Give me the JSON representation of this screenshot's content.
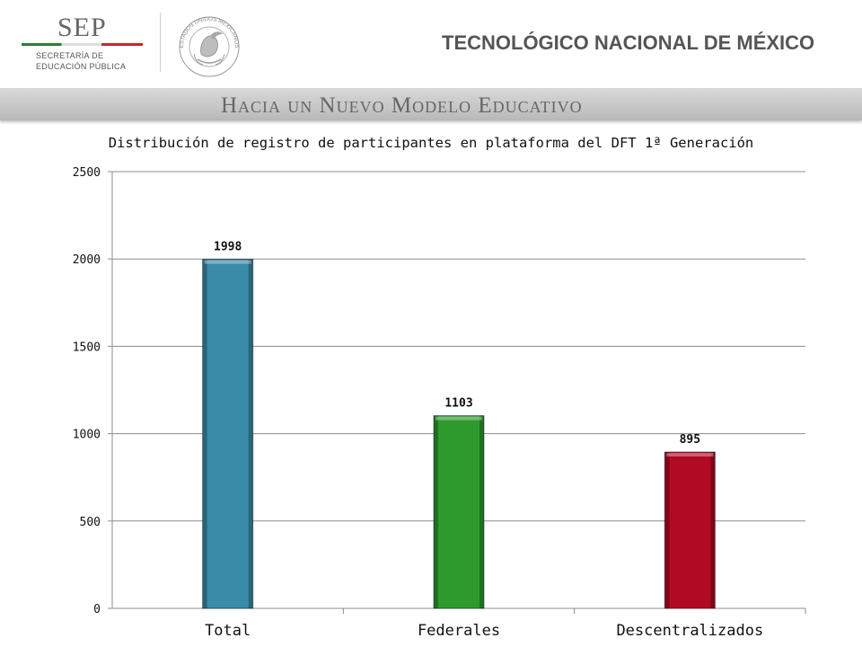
{
  "header": {
    "sep_title": "SEP",
    "sep_line1": "SECRETARÍA DE",
    "sep_line2": "EDUCACIÓN PÚBLICA",
    "institution": "TECNOLÓGICO NACIONAL DE MÉXICO",
    "seal_icon": "mexican-coat-of-arms-icon",
    "seal_text": "ESTADOS UNIDOS MEXICANOS"
  },
  "banner": {
    "text": "Hacia un Nuevo Modelo Educativo"
  },
  "chart_data": {
    "type": "bar",
    "title": "Distribución de registro de participantes en plataforma del DFT 1ª Generación",
    "categories": [
      "Total",
      "Federales",
      "Descentralizados"
    ],
    "values": [
      1998,
      1103,
      895
    ],
    "data_labels": [
      "1998",
      "1103",
      "895"
    ],
    "colors": [
      "#3a8ca8",
      "#2e9a2e",
      "#b00a24"
    ],
    "xlabel": "",
    "ylabel": "",
    "ylim": [
      0,
      2500
    ],
    "yticks": [
      0,
      500,
      1000,
      1500,
      2000,
      2500
    ],
    "grid": true
  }
}
